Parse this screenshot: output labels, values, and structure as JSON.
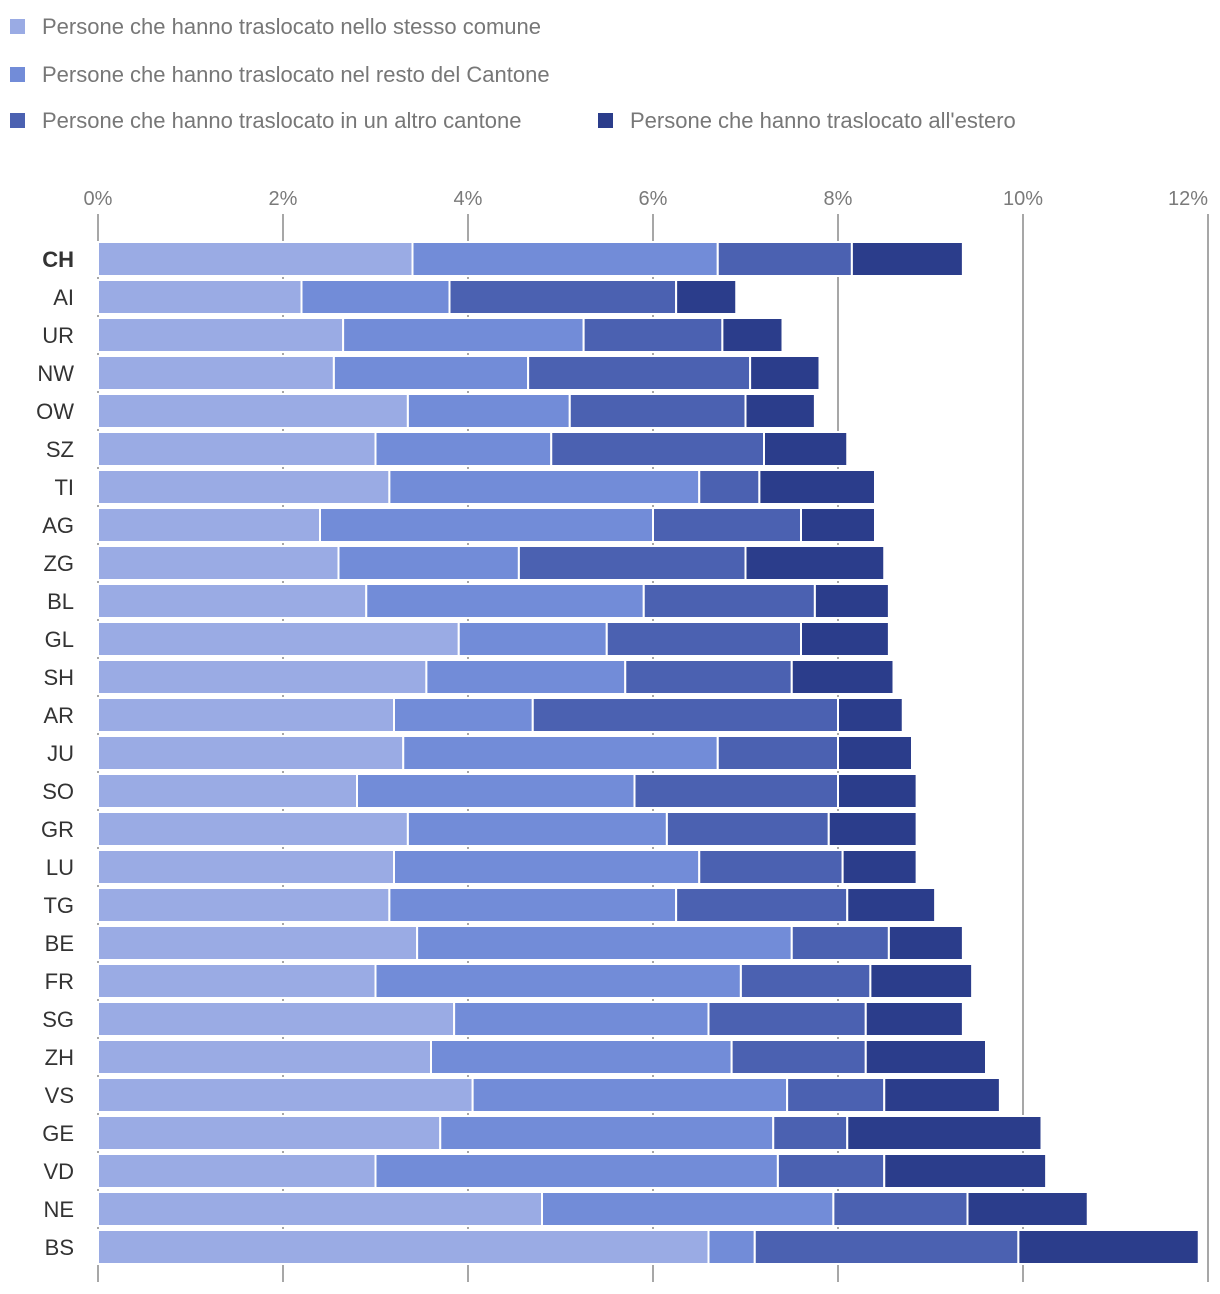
{
  "chart_data": {
    "type": "bar",
    "orientation": "horizontal",
    "stacked": true,
    "xlim": [
      0,
      12
    ],
    "x_ticks": [
      "0%",
      "2%",
      "4%",
      "6%",
      "8%",
      "10%",
      "12%"
    ],
    "grid": true,
    "legend_position": "top-left",
    "bold_categories": [
      "CH"
    ],
    "categories": [
      "CH",
      "AI",
      "UR",
      "NW",
      "OW",
      "SZ",
      "TI",
      "AG",
      "ZG",
      "BL",
      "GL",
      "SH",
      "AR",
      "JU",
      "SO",
      "GR",
      "LU",
      "TG",
      "BE",
      "FR",
      "SG",
      "ZH",
      "VS",
      "GE",
      "VD",
      "NE",
      "BS"
    ],
    "series": [
      {
        "name": "Persone che hanno traslocato nello stesso comune",
        "color": "#9aabe4",
        "values": [
          3.4,
          2.2,
          2.65,
          2.55,
          3.35,
          3.0,
          3.15,
          2.4,
          2.6,
          2.9,
          3.9,
          3.55,
          3.2,
          3.3,
          2.8,
          3.35,
          3.2,
          3.15,
          3.45,
          3.0,
          3.85,
          3.6,
          4.05,
          3.7,
          3.0,
          4.8,
          6.6
        ]
      },
      {
        "name": "Persone che hanno traslocato nel resto del Cantone",
        "color": "#728cd8",
        "values": [
          3.3,
          1.6,
          2.6,
          2.1,
          1.75,
          1.9,
          3.35,
          3.6,
          1.95,
          3.0,
          1.6,
          2.15,
          1.5,
          3.4,
          3.0,
          2.8,
          3.3,
          3.1,
          4.05,
          3.95,
          2.75,
          3.25,
          3.4,
          3.6,
          4.35,
          3.15,
          0.5
        ]
      },
      {
        "name": "Persone che hanno traslocato in un altro cantone",
        "color": "#4b61b1",
        "values": [
          1.45,
          2.45,
          1.5,
          2.4,
          1.9,
          2.3,
          0.65,
          1.6,
          2.45,
          1.85,
          2.1,
          1.8,
          3.3,
          1.3,
          2.2,
          1.75,
          1.55,
          1.85,
          1.05,
          1.4,
          1.7,
          1.45,
          1.05,
          0.8,
          1.15,
          1.45,
          2.85
        ]
      },
      {
        "name": "Persone che hanno traslocato all'estero",
        "color": "#2b3d8b",
        "values": [
          1.2,
          0.65,
          0.65,
          0.75,
          0.75,
          0.9,
          1.25,
          0.8,
          1.5,
          0.8,
          0.95,
          1.1,
          0.7,
          0.8,
          0.85,
          0.95,
          0.8,
          0.95,
          0.8,
          1.1,
          1.05,
          1.3,
          1.25,
          2.1,
          1.75,
          1.3,
          1.95
        ]
      }
    ]
  }
}
